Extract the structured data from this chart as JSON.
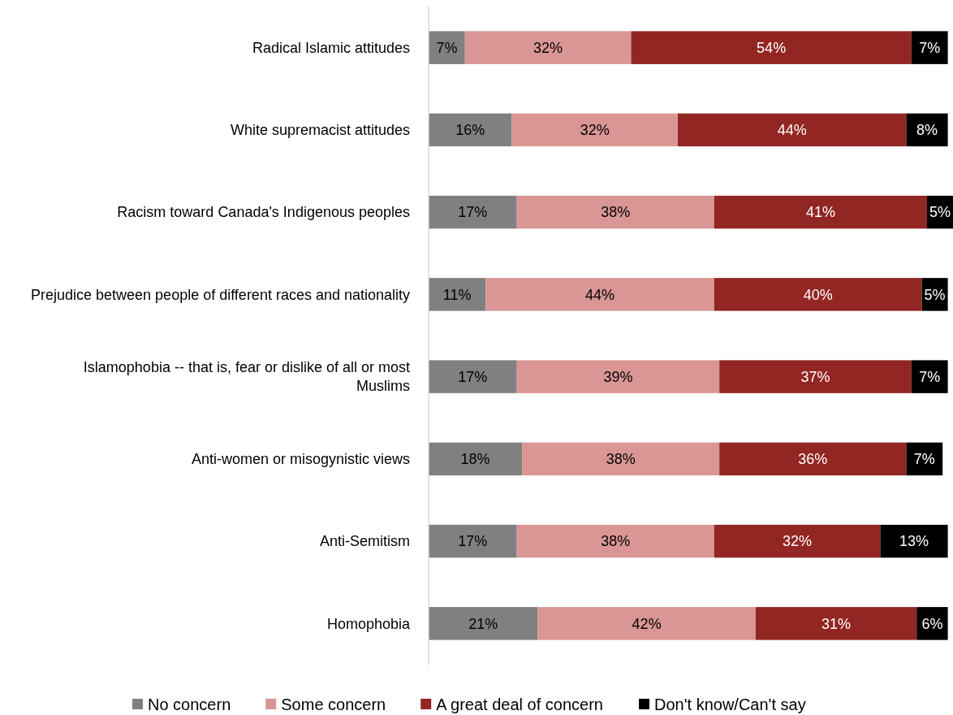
{
  "chart_data": {
    "type": "bar",
    "orientation": "horizontal",
    "stacked": true,
    "legend": "bottom",
    "categories": [
      "Radical Islamic attitudes",
      "White supremacist attitudes",
      "Racism toward Canada's Indigenous peoples",
      "Prejudice between people of different races and nationality",
      "Islamophobia -- that is, fear or dislike of all or most Muslims",
      "Anti-women or misogynistic views",
      "Anti-Semitism",
      "Homophobia"
    ],
    "series": [
      {
        "name": "No concern",
        "color": "#808080",
        "values": [
          7,
          16,
          17,
          11,
          17,
          18,
          17,
          21
        ],
        "value_labels": [
          "7%",
          "16%",
          "17%",
          "11%",
          "17%",
          "18%",
          "17%",
          "21%"
        ]
      },
      {
        "name": "Some concern",
        "color": "#d99694",
        "values": [
          32,
          32,
          38,
          44,
          39,
          38,
          38,
          42
        ],
        "value_labels": [
          "32%",
          "32%",
          "38%",
          "44%",
          "39%",
          "38%",
          "38%",
          "42%"
        ]
      },
      {
        "name": "A great deal of concern",
        "color": "#922622",
        "values": [
          54,
          44,
          41,
          40,
          37,
          36,
          32,
          31
        ],
        "value_labels": [
          "54%",
          "44%",
          "41%",
          "40%",
          "37%",
          "36%",
          "32%",
          "31%"
        ]
      },
      {
        "name": "Don't know/Can't say",
        "color": "#000000",
        "values": [
          7,
          8,
          5,
          5,
          7,
          7,
          13,
          6
        ],
        "value_labels": [
          "7%",
          "8%",
          "5%",
          "5%",
          "7%",
          "7%",
          "13%",
          "6%"
        ]
      }
    ]
  }
}
